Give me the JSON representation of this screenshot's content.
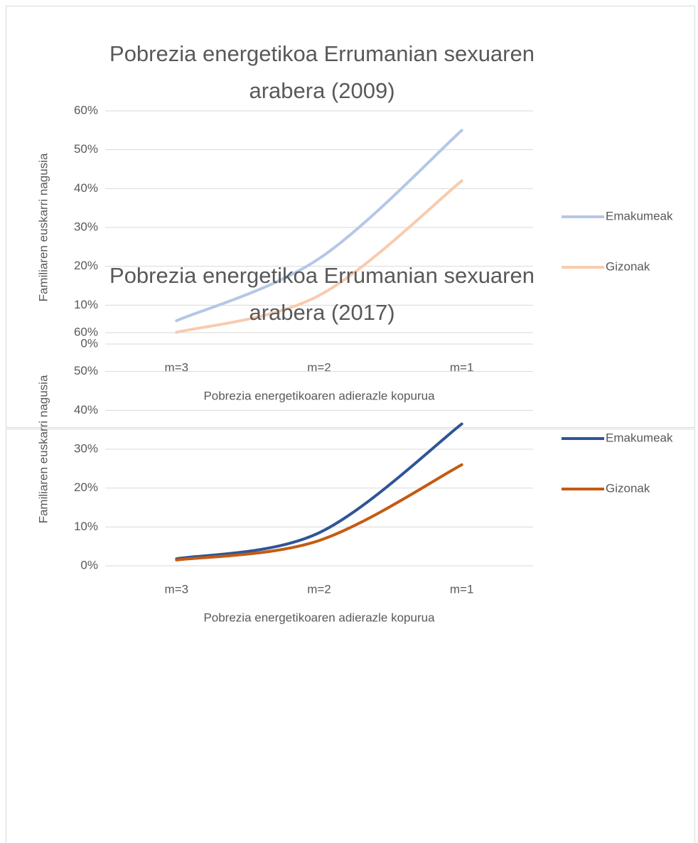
{
  "chart_data": [
    {
      "type": "line",
      "title": "Pobrezia energetikoa Errumanian sexuaren arabera (2009)",
      "x_label": "Pobrezia energetikoaren adierazle kopurua",
      "y_label": "Familiaren euskarri nagusia",
      "categories": [
        "m=3",
        "m=2",
        "m=1"
      ],
      "series": [
        {
          "name": "Emakumeak",
          "color": "#b4c7e7",
          "values": [
            6,
            22,
            55
          ]
        },
        {
          "name": "Gizonak",
          "color": "#f8cbad",
          "values": [
            3,
            12.5,
            42
          ]
        }
      ],
      "ylim": [
        0,
        60
      ],
      "yticks": [
        {
          "value": 0,
          "label": "0%"
        },
        {
          "value": 10,
          "label": "10%"
        },
        {
          "value": 20,
          "label": "20%"
        },
        {
          "value": 30,
          "label": "30%"
        },
        {
          "value": 40,
          "label": "40%"
        },
        {
          "value": 50,
          "label": "50%"
        },
        {
          "value": 60,
          "label": "60%"
        }
      ],
      "grid": true,
      "legend": "right"
    },
    {
      "type": "line",
      "title": "Pobrezia energetikoa Errumanian sexuaren arabera (2017)",
      "x_label": "Pobrezia energetikoaren adierazle kopurua",
      "y_label": "Familiaren euskarri nagusia",
      "categories": [
        "m=3",
        "m=2",
        "m=1"
      ],
      "series": [
        {
          "name": "Emakumeak",
          "color": "#2f5597",
          "values": [
            1.8,
            8.5,
            36.5
          ]
        },
        {
          "name": "Gizonak",
          "color": "#c55a11",
          "values": [
            1.5,
            6.5,
            26
          ]
        }
      ],
      "ylim": [
        0,
        60
      ],
      "yticks": [
        {
          "value": 0,
          "label": "0%"
        },
        {
          "value": 10,
          "label": "10%"
        },
        {
          "value": 20,
          "label": "20%"
        },
        {
          "value": 30,
          "label": "30%"
        },
        {
          "value": 40,
          "label": "40%"
        },
        {
          "value": 50,
          "label": "50%"
        },
        {
          "value": 60,
          "label": "60%"
        }
      ],
      "grid": true,
      "legend": "right"
    }
  ]
}
